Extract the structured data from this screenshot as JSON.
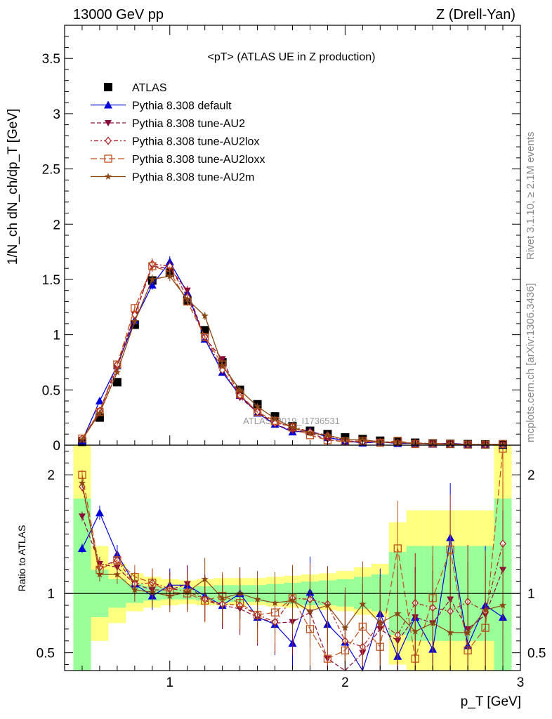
{
  "header": {
    "left": "13000 GeV pp",
    "right": "Z (Drell-Yan)"
  },
  "side_text": {
    "upper": "Rivet 3.1.10, ≥ 2.1M events",
    "lower": "mcplots.cern.ch [arXiv:1306.3436]"
  },
  "watermark": "ATLAS_2019_I1736531",
  "colors": {
    "atlas": "#000000",
    "default": "#0000dd",
    "au2": "#8b0a3a",
    "au2lox": "#aa1a1a",
    "au2loxx": "#c0501a",
    "au2m": "#8b4513",
    "band_yellow": "#ffff80",
    "band_green": "#99ff99"
  },
  "chart_data": [
    {
      "type": "line",
      "title": "<pT> (ATLAS UE in Z production)",
      "ylabel": "1/N_ch dN_ch/dp_T [GeV]",
      "xlim": [
        0.4,
        3.0
      ],
      "ylim": [
        0,
        3.8
      ],
      "yticks": [
        "0",
        "0.5",
        "1",
        "1.5",
        "2",
        "2.5",
        "3",
        "3.5"
      ],
      "legend_position": "top-left",
      "x": [
        0.5,
        0.6,
        0.7,
        0.8,
        0.9,
        1.0,
        1.1,
        1.2,
        1.3,
        1.4,
        1.5,
        1.6,
        1.7,
        1.8,
        1.9,
        2.0,
        2.1,
        2.2,
        2.3,
        2.4,
        2.5,
        2.6,
        2.7,
        2.8,
        2.9
      ],
      "series": [
        {
          "name": "ATLAS",
          "key": "atlas",
          "style": "points",
          "values": [
            0.03,
            0.25,
            0.57,
            1.09,
            1.49,
            1.56,
            1.31,
            1.04,
            0.75,
            0.5,
            0.37,
            0.26,
            0.17,
            0.13,
            0.1,
            0.07,
            0.055,
            0.04,
            0.03,
            0.022,
            0.016,
            0.012,
            0.009,
            0.007,
            0.005
          ]
        },
        {
          "name": "Pythia 8.308 default",
          "key": "default",
          "style": "solid",
          "values": [
            0.04,
            0.4,
            0.72,
            1.13,
            1.45,
            1.66,
            1.38,
            0.96,
            0.66,
            0.45,
            0.29,
            0.19,
            0.12,
            0.13,
            0.07,
            0.04,
            0.02,
            0.03,
            0.015,
            0.018,
            0.009,
            0.017,
            0.005,
            0.006,
            0.004
          ]
        },
        {
          "name": "Pythia 8.308 tune-AU2",
          "key": "au2",
          "style": "dashed",
          "values": [
            0.05,
            0.31,
            0.7,
            1.18,
            1.62,
            1.6,
            1.4,
            0.97,
            0.78,
            0.43,
            0.3,
            0.19,
            0.13,
            0.11,
            0.05,
            0.03,
            0.03,
            0.03,
            0.02,
            0.02,
            0.013,
            0.012,
            0.007,
            0.006,
            0.006
          ]
        },
        {
          "name": "Pythia 8.308 tune-AU2lox",
          "key": "au2lox",
          "style": "dotdash",
          "values": [
            0.06,
            0.31,
            0.73,
            1.18,
            1.64,
            1.62,
            1.34,
            0.98,
            0.68,
            0.45,
            0.3,
            0.2,
            0.17,
            0.12,
            0.09,
            0.04,
            0.03,
            0.03,
            0.02,
            0.02,
            0.014,
            0.01,
            0.008,
            0.006,
            0.007
          ]
        },
        {
          "name": "Pythia 8.308 tune-AU2loxx",
          "key": "au2loxx",
          "style": "longdash",
          "values": [
            0.06,
            0.3,
            0.73,
            1.24,
            1.62,
            1.57,
            1.3,
            0.98,
            0.73,
            0.46,
            0.3,
            0.22,
            0.16,
            0.09,
            0.045,
            0.035,
            0.04,
            0.022,
            0.04,
            0.01,
            0.015,
            0.012,
            0.005,
            0.005,
            0.011
          ]
        },
        {
          "name": "Pythia 8.308 tune-AU2m",
          "key": "au2m",
          "style": "solid",
          "values": [
            0.05,
            0.29,
            0.66,
            1.12,
            1.5,
            1.53,
            1.32,
            1.17,
            0.72,
            0.5,
            0.35,
            0.24,
            0.16,
            0.11,
            0.09,
            0.05,
            0.05,
            0.03,
            0.025,
            0.015,
            0.012,
            0.008,
            0.006,
            0.006,
            0.004
          ]
        }
      ]
    },
    {
      "type": "line",
      "ylabel": "Ratio to ATLAS",
      "xlabel": "p_T [GeV]",
      "xlim": [
        0.4,
        3.0
      ],
      "xticks": [
        "1",
        "2",
        "3"
      ],
      "ylim": [
        0.35,
        2.25
      ],
      "yticks": [
        "0.5",
        "1",
        "2"
      ],
      "bands": {
        "yellow": [
          [
            0.0,
            2.25
          ],
          [
            0.6,
            1.4
          ],
          [
            0.75,
            1.25
          ],
          [
            0.85,
            1.17
          ],
          [
            0.88,
            1.14
          ],
          [
            0.9,
            1.12
          ],
          [
            0.91,
            1.11
          ],
          [
            0.9,
            1.12
          ],
          [
            0.9,
            1.13
          ],
          [
            0.9,
            1.13
          ],
          [
            0.9,
            1.13
          ],
          [
            0.89,
            1.14
          ],
          [
            0.88,
            1.15
          ],
          [
            0.87,
            1.16
          ],
          [
            0.86,
            1.17
          ],
          [
            0.85,
            1.19
          ],
          [
            0.82,
            1.22
          ],
          [
            0.8,
            1.25
          ],
          [
            0.4,
            1.6
          ],
          [
            0.3,
            1.7
          ],
          [
            0.3,
            1.7
          ],
          [
            0.3,
            1.7
          ],
          [
            0.3,
            1.7
          ],
          [
            0.3,
            1.7
          ],
          [
            0.0,
            2.25
          ]
        ],
        "green": [
          [
            0.0,
            1.8
          ],
          [
            0.8,
            1.2
          ],
          [
            0.88,
            1.12
          ],
          [
            0.92,
            1.08
          ],
          [
            0.94,
            1.06
          ],
          [
            0.95,
            1.05
          ],
          [
            0.95,
            1.05
          ],
          [
            0.94,
            1.06
          ],
          [
            0.93,
            1.07
          ],
          [
            0.93,
            1.07
          ],
          [
            0.93,
            1.07
          ],
          [
            0.92,
            1.08
          ],
          [
            0.91,
            1.09
          ],
          [
            0.9,
            1.1
          ],
          [
            0.9,
            1.11
          ],
          [
            0.89,
            1.12
          ],
          [
            0.87,
            1.14
          ],
          [
            0.85,
            1.16
          ],
          [
            0.65,
            1.35
          ],
          [
            0.6,
            1.4
          ],
          [
            0.6,
            1.4
          ],
          [
            0.6,
            1.4
          ],
          [
            0.6,
            1.4
          ],
          [
            0.6,
            1.4
          ],
          [
            0.0,
            1.8
          ]
        ]
      },
      "series": [
        {
          "name": "Pythia 8.308 default",
          "key": "default",
          "values": [
            1.38,
            1.68,
            1.33,
            1.08,
            0.98,
            1.07,
            1.07,
            0.98,
            0.9,
            1.0,
            0.8,
            0.74,
            0.58,
            1.01,
            0.74,
            0.59,
            0.3,
            0.83,
            0.47,
            0.8,
            0.53,
            1.47,
            0.56,
            0.9,
            0.8
          ]
        },
        {
          "name": "Pythia 8.308 tune-AU2",
          "key": "au2",
          "values": [
            1.65,
            1.25,
            1.22,
            1.08,
            1.03,
            1.03,
            1.08,
            0.94,
            0.9,
            0.87,
            0.8,
            0.75,
            0.76,
            0.84,
            0.45,
            0.3,
            0.5,
            0.7,
            0.6,
            0.8,
            0.75,
            0.95,
            0.7,
            0.82,
            1.2
          ]
        },
        {
          "name": "Pythia 8.308 tune-AU2lox",
          "key": "au2lox",
          "values": [
            1.9,
            1.22,
            1.28,
            1.08,
            1.09,
            1.04,
            1.02,
            0.95,
            0.91,
            0.9,
            0.82,
            0.76,
            0.96,
            0.95,
            0.91,
            0.6,
            0.55,
            0.75,
            0.65,
            0.92,
            0.88,
            0.85,
            0.93,
            0.85,
            1.42
          ]
        },
        {
          "name": "Pythia 8.308 tune-AU2loxx",
          "key": "au2loxx",
          "values": [
            2.0,
            1.2,
            1.28,
            1.14,
            1.09,
            1.01,
            1.0,
            0.94,
            0.98,
            0.92,
            0.82,
            0.84,
            0.96,
            0.7,
            0.45,
            0.52,
            0.72,
            0.55,
            1.38,
            0.45,
            0.96,
            1.37,
            0.52,
            0.71,
            2.22
          ]
        },
        {
          "name": "Pythia 8.308 tune-AU2m",
          "key": "au2m",
          "values": [
            1.93,
            1.16,
            1.16,
            1.03,
            1.01,
            0.98,
            1.01,
            1.12,
            0.96,
            1.0,
            0.95,
            0.92,
            0.94,
            0.85,
            0.9,
            0.71,
            0.91,
            0.75,
            0.83,
            0.68,
            0.75,
            0.67,
            0.67,
            0.86,
            0.9
          ]
        }
      ]
    }
  ]
}
